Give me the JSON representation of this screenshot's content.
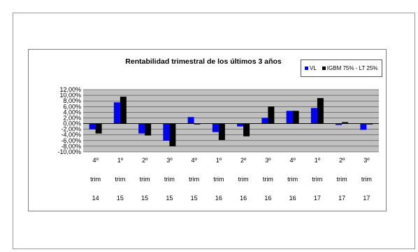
{
  "chart_data": {
    "type": "bar",
    "title": "Rentabilidad trimestral de los últimos 3 años",
    "categories": [
      [
        "4º",
        "trim",
        "14"
      ],
      [
        "1º",
        "trim",
        "15"
      ],
      [
        "2º",
        "trim",
        "15"
      ],
      [
        "3º",
        "trim",
        "15"
      ],
      [
        "4º",
        "trim",
        "15"
      ],
      [
        "1º",
        "trim",
        "16"
      ],
      [
        "2º",
        "trim",
        "16"
      ],
      [
        "3º",
        "trim",
        "16"
      ],
      [
        "4º",
        "trim",
        "16"
      ],
      [
        "1º",
        "trim",
        "17"
      ],
      [
        "2º",
        "trim",
        "17"
      ],
      [
        "3º",
        "trim",
        "17"
      ]
    ],
    "series": [
      {
        "name": "VL",
        "color": "#0000ff",
        "values": [
          -2.0,
          7.5,
          -3.5,
          -6.0,
          2.3,
          -3.0,
          -1.0,
          2.0,
          4.5,
          5.5,
          -0.5,
          -2.2
        ]
      },
      {
        "name": "IGBM 75% - LT 25%",
        "color": "#000000",
        "values": [
          -3.5,
          9.5,
          -4.2,
          -8.0,
          -0.3,
          -5.8,
          -4.5,
          6.0,
          4.5,
          9.0,
          0.5,
          -0.3
        ]
      }
    ],
    "yticks": [
      "12,00%",
      "10,00%",
      "8,00%",
      "6,00%",
      "4,00%",
      "2,00%",
      "0,00%",
      "-2,00%",
      "-4,00%",
      "-6,00%",
      "-8,00%",
      "-10,00%"
    ],
    "ylim": [
      -10,
      12
    ],
    "grid": true,
    "plot_background": "#c0c0c0",
    "legend": "top-right"
  }
}
